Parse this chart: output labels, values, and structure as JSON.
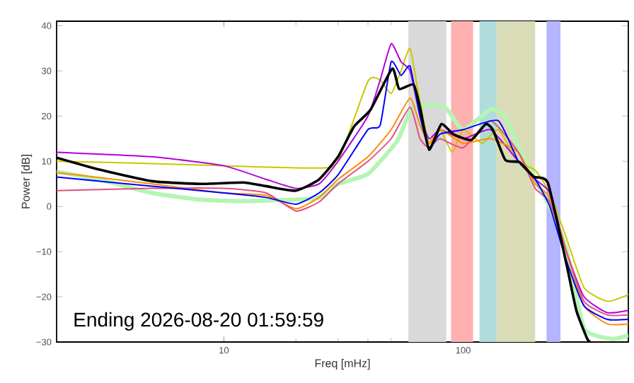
{
  "chart_data": {
    "type": "line",
    "xlabel": "Freq [mHz]",
    "ylabel": "Power [dB]",
    "log": "x",
    "xlim": [
      2,
      490
    ],
    "ylim": [
      -30,
      41
    ],
    "xticks": [
      10,
      100
    ],
    "yticks": [
      {
        "value": -30,
        "label": "−30"
      },
      {
        "value": -20,
        "label": "−20"
      },
      {
        "value": -10,
        "label": "−10"
      },
      0,
      10,
      20,
      30,
      40
    ],
    "annotations": [
      "Ending 2026-08-20 01:59:59"
    ],
    "bands": [
      {
        "axis": "x",
        "from": 59,
        "to": 85,
        "color": "#d9d9d9"
      },
      {
        "axis": "x",
        "from": 89,
        "to": 110,
        "color": "#ffb0b0"
      },
      {
        "axis": "x",
        "from": 117,
        "to": 138,
        "color": "#b0dcdc"
      },
      {
        "axis": "x",
        "from": 138,
        "to": 200,
        "color": "#dadcb8"
      },
      {
        "axis": "x",
        "from": 223,
        "to": 255,
        "color": "#b4b4ff"
      }
    ],
    "series": [
      {
        "color": "#b4f5b4",
        "x": [
          2,
          3,
          5,
          8,
          12,
          20,
          25,
          30,
          40,
          53,
          60,
          70,
          84,
          100,
          130,
          150,
          172,
          200,
          230,
          270,
          320,
          420,
          490
        ],
        "values": [
          7.7,
          6,
          3,
          1.5,
          1.2,
          1.5,
          2,
          5,
          7.2,
          14.5,
          21,
          22.4,
          22,
          17,
          21.5,
          20,
          12.4,
          6,
          0,
          -9.5,
          -27,
          -29.3,
          -28.5
        ]
      },
      {
        "color": "#c8c800",
        "x": [
          2,
          5,
          10,
          25,
          30,
          40,
          45,
          50,
          55,
          60,
          65,
          72,
          80,
          90,
          100,
          120,
          140,
          170,
          200,
          230,
          270,
          320,
          400,
          490
        ],
        "values": [
          10,
          9.5,
          9,
          8.5,
          10,
          27.7,
          28,
          25,
          30,
          35,
          25,
          14,
          17,
          12,
          17,
          14,
          17,
          10,
          8,
          3,
          -7,
          -18,
          -21,
          -19.5
        ]
      },
      {
        "color": "#b400dc",
        "x": [
          2,
          5,
          10,
          15,
          20,
          25,
          30,
          40,
          45,
          50,
          55,
          60,
          66,
          72,
          80,
          100,
          130,
          170,
          200,
          230,
          270,
          320,
          400,
          490
        ],
        "values": [
          12,
          11,
          9,
          6,
          4,
          5,
          10,
          20,
          28,
          36,
          32,
          30,
          20,
          15,
          17,
          15,
          17,
          10,
          6,
          3,
          -10,
          -20,
          -23.5,
          -23
        ]
      },
      {
        "color": "#ff8c00",
        "x": [
          2,
          5,
          10,
          15,
          20,
          25,
          30,
          40,
          50,
          60,
          66,
          72,
          80,
          100,
          130,
          170,
          200,
          230,
          270,
          320,
          400,
          490
        ],
        "values": [
          7.5,
          5,
          3,
          2.5,
          -0.5,
          2,
          6,
          11,
          17,
          24,
          18,
          14,
          17,
          14,
          15,
          12,
          5,
          2,
          -10,
          -22,
          -26,
          -26
        ]
      },
      {
        "color": "#e05080",
        "x": [
          2,
          5,
          10,
          15,
          20,
          25,
          30,
          40,
          50,
          60,
          66,
          72,
          80,
          100,
          130,
          170,
          200,
          230,
          270,
          320,
          400,
          490
        ],
        "values": [
          3.5,
          4,
          4,
          3,
          -1,
          1,
          5,
          10,
          15,
          22,
          15,
          13,
          15,
          13,
          19,
          12,
          4,
          1,
          -10,
          -21,
          -24,
          -24
        ]
      },
      {
        "color": "#0000ff",
        "x": [
          2,
          5,
          10,
          15,
          20,
          25,
          30,
          40,
          45,
          50,
          55,
          60,
          66,
          72,
          80,
          100,
          140,
          170,
          200,
          230,
          270,
          320,
          400,
          490
        ],
        "values": [
          6.5,
          4.5,
          3,
          2,
          0.5,
          3,
          7,
          17,
          18,
          32,
          29,
          31,
          20,
          13,
          16,
          17,
          19,
          10,
          6,
          0,
          -12,
          -22,
          -25,
          -25
        ]
      },
      {
        "color": "#000000",
        "x": [
          2,
          3,
          5,
          8,
          12,
          15,
          20,
          25,
          30,
          35,
          41,
          50.5,
          54,
          62,
          66,
          72,
          81,
          91,
          108,
          124,
          133,
          150,
          172,
          197,
          226,
          270,
          297,
          330,
          340
        ],
        "values": [
          10.8,
          8.2,
          5.6,
          5,
          5.3,
          4.5,
          3.5,
          6,
          11,
          17.7,
          21.4,
          30.5,
          26,
          27,
          22,
          12.6,
          18.2,
          16,
          14.7,
          18.2,
          17,
          10.3,
          9.8,
          6.6,
          5.2,
          -12.7,
          -23,
          -29.3,
          -30
        ]
      }
    ]
  }
}
